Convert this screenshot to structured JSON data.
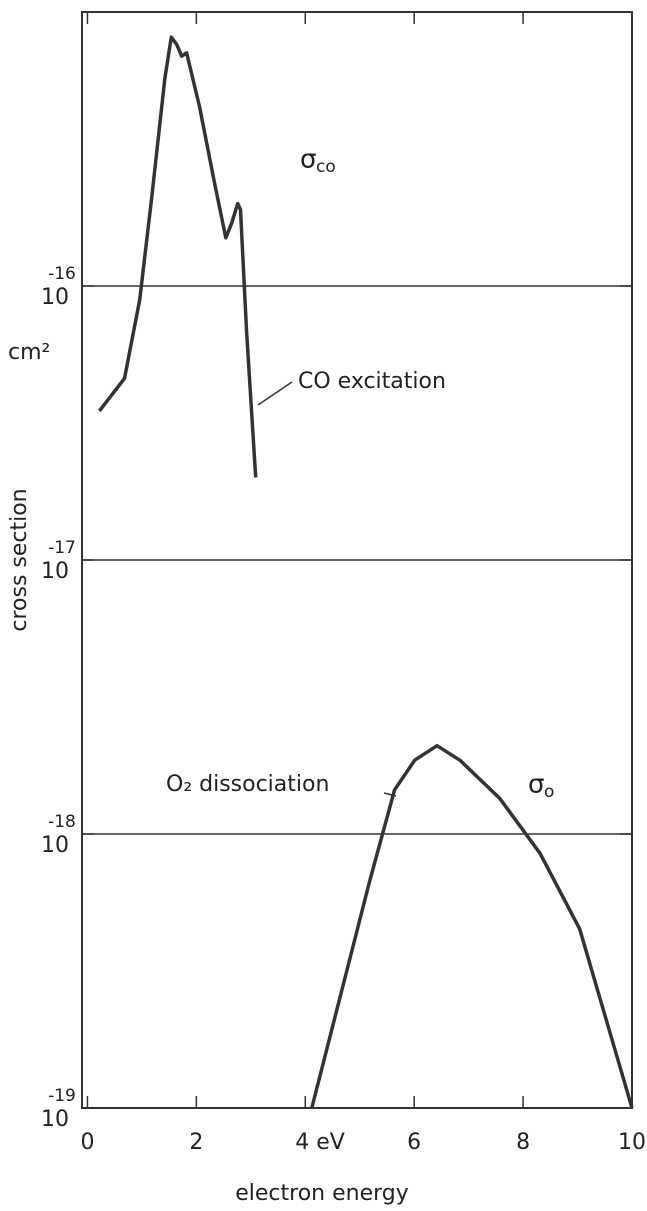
{
  "chart_data": {
    "type": "line",
    "x_label": "electron energy",
    "y_label": "cross section",
    "y_unit": "cm²",
    "yscale": "log",
    "xlim": [
      -0.1,
      10
    ],
    "ylim": [
      1e-19,
      1e-15
    ],
    "xticks": [
      0,
      2,
      {
        "value": 4,
        "label": "4 eV"
      },
      6,
      8,
      10
    ],
    "yticks": [
      {
        "value": 1e-19,
        "label": "10",
        "exponent": "-19"
      },
      {
        "value": 1e-18,
        "label": "10",
        "exponent": "-18"
      },
      {
        "value": 1e-17,
        "label": "10",
        "exponent": "-17"
      },
      {
        "value": 1e-16,
        "label": "10",
        "exponent": "-16"
      }
    ],
    "grid": true,
    "series": [
      {
        "name": "CO excitation",
        "color": "#333333",
        "x": [
          0.22,
          0.68,
          0.96,
          1.18,
          1.42,
          1.54,
          1.64,
          1.73,
          1.82,
          2.06,
          2.33,
          2.54,
          2.65,
          2.76,
          2.81,
          2.92,
          3.09
        ],
        "values": [
          3.5e-17,
          4.6e-17,
          8.9e-17,
          2.1e-16,
          5.7e-16,
          8.1e-16,
          7.6e-16,
          6.9e-16,
          7.1e-16,
          4.5e-16,
          2.4e-16,
          1.5e-16,
          1.7e-16,
          2e-16,
          1.9e-16,
          6.9e-17,
          2e-17
        ]
      },
      {
        "name": "O₂ dissociation",
        "color": "#333333",
        "x": [
          4.12,
          4.63,
          5.18,
          5.64,
          6.01,
          6.42,
          6.84,
          7.57,
          8.31,
          9.04,
          10
        ],
        "values": [
          1e-19,
          2.5e-19,
          6.7e-19,
          1.45e-18,
          1.86e-18,
          2.1e-18,
          1.86e-18,
          1.35e-18,
          8.5e-19,
          4.5e-19,
          1e-19
        ]
      }
    ],
    "annotations": [
      {
        "text": "σ",
        "sub": "co"
      },
      {
        "text": "σ",
        "sub": "o"
      }
    ]
  }
}
